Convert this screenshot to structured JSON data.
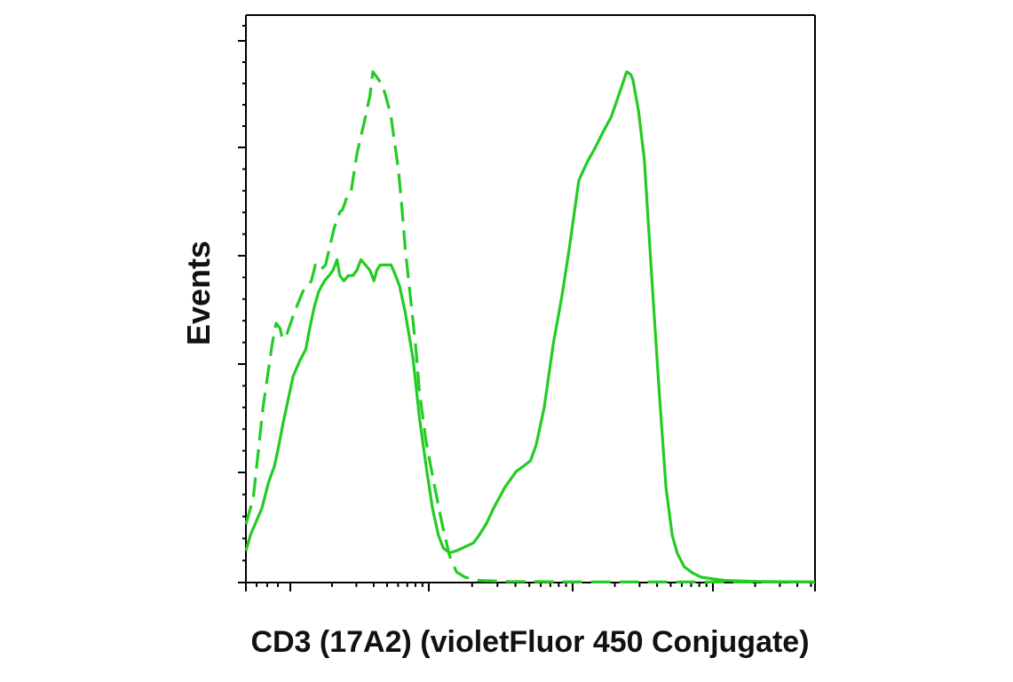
{
  "chart_data": {
    "type": "line",
    "title": "",
    "xlabel": "CD3 (17A2) (violetFluor 450 Conjugate)",
    "ylabel": "Events",
    "x_scale": "log",
    "xlim": [
      0,
      100
    ],
    "ylim": [
      0,
      100
    ],
    "grid": false,
    "legend": "none",
    "color": "#22cc22",
    "series": [
      {
        "style": "solid",
        "points": [
          [
            0,
            6
          ],
          [
            0.8,
            9
          ],
          [
            2.8,
            14
          ],
          [
            4,
            19
          ],
          [
            5,
            22
          ],
          [
            5.8,
            26
          ],
          [
            6.5,
            30
          ],
          [
            7.5,
            35
          ],
          [
            8.3,
            39
          ],
          [
            9.5,
            42
          ],
          [
            10.5,
            44
          ],
          [
            11.2,
            48
          ],
          [
            12,
            52
          ],
          [
            12.8,
            55
          ],
          [
            13.8,
            57
          ],
          [
            14.6,
            58
          ],
          [
            15.3,
            59
          ],
          [
            16,
            61
          ],
          [
            16.5,
            58
          ],
          [
            17.2,
            57
          ],
          [
            18,
            58
          ],
          [
            18.8,
            58
          ],
          [
            19.5,
            59
          ],
          [
            20.2,
            61
          ],
          [
            21,
            60
          ],
          [
            21.8,
            59
          ],
          [
            22.5,
            57
          ],
          [
            23,
            59
          ],
          [
            23.6,
            60
          ],
          [
            24.2,
            60
          ],
          [
            24.8,
            60
          ],
          [
            25.5,
            60
          ],
          [
            26.3,
            58
          ],
          [
            27,
            56
          ],
          [
            28,
            51
          ],
          [
            29.4,
            42
          ],
          [
            30.5,
            31
          ],
          [
            31.8,
            21
          ],
          [
            32.8,
            14
          ],
          [
            33.8,
            9
          ],
          [
            34.7,
            6.5
          ],
          [
            35.8,
            5.6
          ],
          [
            37,
            6
          ],
          [
            38,
            6.5
          ],
          [
            39,
            7
          ],
          [
            40,
            7.5
          ],
          [
            41,
            9
          ],
          [
            42.2,
            11
          ],
          [
            43.5,
            14
          ],
          [
            45.5,
            18
          ],
          [
            47.5,
            21
          ],
          [
            48.8,
            22
          ],
          [
            50,
            23
          ],
          [
            51,
            26
          ],
          [
            52.4,
            33
          ],
          [
            54,
            45
          ],
          [
            55.5,
            54
          ],
          [
            56.8,
            63
          ],
          [
            58.5,
            76
          ],
          [
            60,
            79.5
          ],
          [
            61.3,
            82
          ],
          [
            62.7,
            85
          ],
          [
            64.2,
            88
          ],
          [
            65.8,
            93
          ],
          [
            66.9,
            96.5
          ],
          [
            67.6,
            96
          ],
          [
            68,
            95
          ],
          [
            69,
            89
          ],
          [
            70,
            80
          ],
          [
            71.3,
            58
          ],
          [
            72.5,
            38
          ],
          [
            73.8,
            18
          ],
          [
            74.9,
            9
          ],
          [
            75.8,
            5.5
          ],
          [
            77,
            3
          ],
          [
            78.5,
            1.8
          ],
          [
            80,
            1
          ],
          [
            84,
            0.4
          ],
          [
            90,
            0.2
          ],
          [
            100,
            0.1
          ]
        ]
      },
      {
        "style": "dashed",
        "points": [
          [
            0,
            11
          ],
          [
            1.3,
            16
          ],
          [
            3,
            33
          ],
          [
            4.6,
            45
          ],
          [
            5.3,
            49
          ],
          [
            6,
            48
          ],
          [
            6.4,
            46
          ],
          [
            7.2,
            47
          ],
          [
            8.5,
            51
          ],
          [
            10,
            55
          ],
          [
            11.5,
            57
          ],
          [
            12.2,
            60
          ],
          [
            13,
            59
          ],
          [
            14,
            60
          ],
          [
            15.5,
            67
          ],
          [
            16.5,
            70
          ],
          [
            17,
            70.5
          ],
          [
            17.8,
            73
          ],
          [
            18.5,
            74
          ],
          [
            19.5,
            81
          ],
          [
            20.8,
            87
          ],
          [
            21.8,
            92
          ],
          [
            22.3,
            96.5
          ],
          [
            23,
            95.5
          ],
          [
            24,
            94
          ],
          [
            24.8,
            91
          ],
          [
            25.5,
            88
          ],
          [
            26,
            84
          ],
          [
            26.8,
            78
          ],
          [
            27.4,
            71
          ],
          [
            28,
            63
          ],
          [
            28.8,
            55
          ],
          [
            29.8,
            45
          ],
          [
            30.5,
            36
          ],
          [
            31.6,
            27
          ],
          [
            33,
            19
          ],
          [
            34.5,
            11
          ],
          [
            35.8,
            5
          ],
          [
            37,
            2
          ],
          [
            38.5,
            1
          ],
          [
            41,
            0.4
          ],
          [
            46,
            0.2
          ],
          [
            60,
            0.1
          ],
          [
            100,
            0.1
          ]
        ]
      }
    ]
  }
}
